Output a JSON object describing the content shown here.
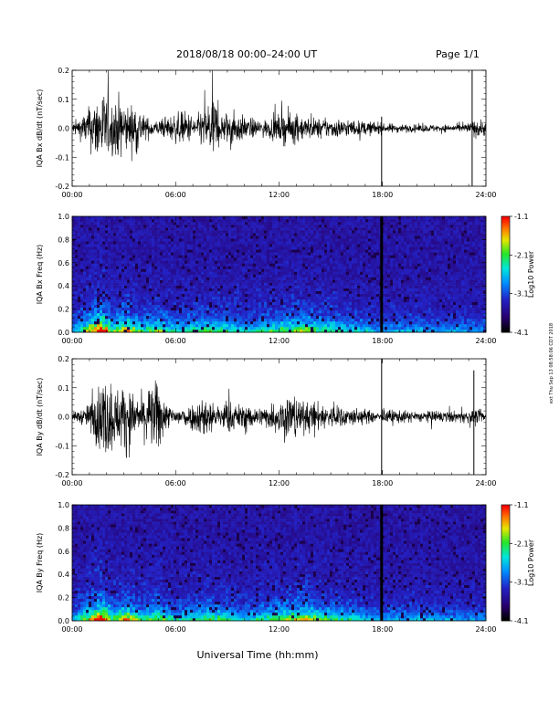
{
  "header": {
    "title": "2018/08/18  00:00–24:00 UT",
    "page": "Page 1/1"
  },
  "xlabel": "Universal Time (hh:mm)",
  "side_note": "ext Thu Sep 13 08:58:06 CDT 2018",
  "colorbar": {
    "ticks": [
      "-1.1",
      "-2.1",
      "-3.1",
      "-4.1"
    ],
    "label": "Log10 Power"
  },
  "chart_data": [
    {
      "type": "line",
      "ylabel": "IQA Bx dB/dt (nT/sec)",
      "xlim": [
        0,
        24
      ],
      "ylim": [
        -0.2,
        0.2
      ],
      "x_ticks": [
        "00:00",
        "06:00",
        "12:00",
        "18:00",
        "24:00"
      ],
      "y_ticks": [
        "0.2",
        "0.1",
        "0.0",
        "-0.1",
        "-0.2"
      ],
      "envelope": {
        "x": [
          0,
          0.5,
          1.0,
          1.5,
          1.8,
          2.2,
          2.8,
          3.3,
          3.7,
          4.2,
          5.0,
          5.8,
          6.5,
          7.2,
          7.9,
          8.2,
          8.6,
          9.2,
          10.0,
          11.0,
          12.0,
          12.6,
          13.5,
          14.5,
          15.5,
          16.5,
          17.5,
          17.9,
          18.1,
          18.5,
          19.5,
          20.5,
          21.5,
          22.5,
          23.0,
          23.5,
          24.0
        ],
        "amp": [
          0.03,
          0.06,
          0.11,
          0.18,
          0.2,
          0.13,
          0.17,
          0.11,
          0.15,
          0.06,
          0.04,
          0.07,
          0.09,
          0.06,
          0.14,
          0.19,
          0.07,
          0.1,
          0.06,
          0.04,
          0.07,
          0.09,
          0.06,
          0.05,
          0.05,
          0.04,
          0.035,
          0.03,
          0.02,
          0.025,
          0.02,
          0.02,
          0.02,
          0.02,
          0.03,
          0.05,
          0.04
        ]
      },
      "events": [
        {
          "x": 17.95,
          "ylow": -0.2,
          "yhigh": 0.04
        },
        {
          "x": 23.2,
          "ylow": -0.2,
          "yhigh": 0.2
        }
      ]
    },
    {
      "type": "heatmap",
      "ylabel": "IQA Bx Freq (Hz)",
      "xlim": [
        0,
        24
      ],
      "ylim": [
        0,
        1.0
      ],
      "x_ticks": [
        "00:00",
        "06:00",
        "12:00",
        "18:00",
        "24:00"
      ],
      "y_ticks": [
        "1.0",
        "0.8",
        "0.6",
        "0.4",
        "0.2",
        "0.0"
      ],
      "zlim": [
        -4.1,
        -1.1
      ],
      "activity": {
        "x": [
          0,
          1.0,
          1.7,
          2.3,
          3.2,
          4.0,
          5.0,
          6.0,
          8.0,
          10.0,
          12.0,
          13.5,
          15.0,
          16.5,
          18.0,
          20.0,
          22.0,
          24.0
        ],
        "amp": [
          0.5,
          1.3,
          2.0,
          1.0,
          1.4,
          0.9,
          1.1,
          0.7,
          1.0,
          0.7,
          1.0,
          1.1,
          0.9,
          0.7,
          0.5,
          0.6,
          0.5,
          0.5
        ]
      },
      "black_band_x": 17.95
    },
    {
      "type": "line",
      "ylabel": "IQA By dB/dt (nT/sec)",
      "xlim": [
        0,
        24
      ],
      "ylim": [
        -0.2,
        0.2
      ],
      "x_ticks": [
        "00:00",
        "06:00",
        "12:00",
        "18:00",
        "24:00"
      ],
      "y_ticks": [
        "0.2",
        "0.1",
        "0.0",
        "-0.1",
        "-0.2"
      ],
      "envelope": {
        "x": [
          0,
          0.8,
          1.2,
          1.7,
          2.2,
          2.7,
          3.1,
          3.6,
          4.2,
          5.0,
          5.5,
          6.0,
          6.8,
          7.8,
          8.3,
          9.0,
          10.0,
          11.0,
          12.0,
          12.6,
          13.3,
          14.0,
          15.0,
          16.0,
          17.0,
          17.9,
          18.5,
          19.5,
          20.5,
          21.5,
          22.5,
          23.5,
          24.0
        ],
        "amp": [
          0.02,
          0.05,
          0.1,
          0.2,
          0.2,
          0.14,
          0.2,
          0.1,
          0.12,
          0.2,
          0.06,
          0.05,
          0.06,
          0.12,
          0.06,
          0.08,
          0.06,
          0.05,
          0.09,
          0.14,
          0.08,
          0.08,
          0.06,
          0.05,
          0.04,
          0.02,
          0.04,
          0.03,
          0.03,
          0.03,
          0.03,
          0.04,
          0.02
        ]
      },
      "events": [
        {
          "x": 17.95,
          "ylow": -0.2,
          "yhigh": 0.2
        },
        {
          "x": 23.3,
          "ylow": -0.2,
          "yhigh": 0.16
        }
      ]
    },
    {
      "type": "heatmap",
      "ylabel": "IQA By Freq (Hz)",
      "xlim": [
        0,
        24
      ],
      "ylim": [
        0,
        1.0
      ],
      "x_ticks": [
        "00:00",
        "06:00",
        "12:00",
        "18:00",
        "24:00"
      ],
      "y_ticks": [
        "1.0",
        "0.8",
        "0.6",
        "0.4",
        "0.2",
        "0.0"
      ],
      "zlim": [
        -4.1,
        -1.1
      ],
      "activity": {
        "x": [
          0,
          1.0,
          1.7,
          2.3,
          3.2,
          4.0,
          5.0,
          6.0,
          8.0,
          10.0,
          12.0,
          13.5,
          15.0,
          16.5,
          18.0,
          20.0,
          22.0,
          24.0
        ],
        "amp": [
          0.5,
          1.3,
          2.0,
          1.0,
          1.4,
          0.9,
          1.1,
          0.7,
          1.0,
          0.7,
          1.0,
          1.3,
          0.9,
          0.7,
          0.5,
          0.6,
          0.5,
          0.5
        ]
      },
      "black_band_x": 17.95
    }
  ]
}
